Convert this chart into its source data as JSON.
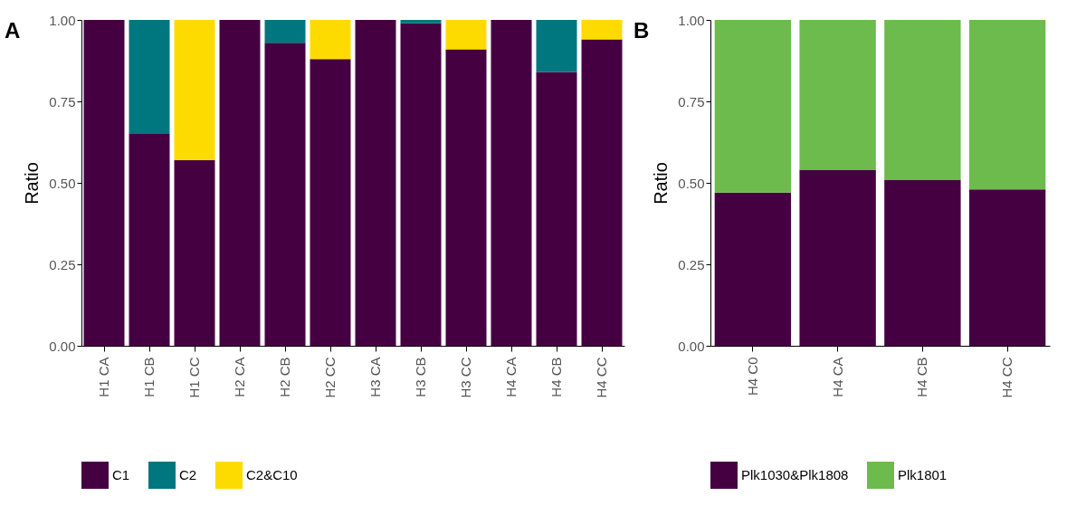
{
  "chart_data": [
    {
      "type": "bar",
      "stacked": true,
      "annotations": [
        "A"
      ],
      "ylabel": "Ratio",
      "categories": [
        "H1 CA",
        "H1 CB",
        "H1 CC",
        "H2 CA",
        "H2 CB",
        "H2 CC",
        "H3 CA",
        "H3 CB",
        "H3 CC",
        "H4 CA",
        "H4 CB",
        "H4 CC"
      ],
      "series": [
        {
          "name": "C1",
          "color": "#450042",
          "values": [
            1,
            0.65,
            0.57,
            1,
            0.93,
            0.88,
            1,
            0.99,
            0.91,
            1,
            0.84,
            0.94
          ]
        },
        {
          "name": "C2",
          "color": "#00767f",
          "values": [
            null,
            0.35,
            null,
            null,
            0.07,
            null,
            null,
            0.01,
            null,
            null,
            0.16,
            null
          ]
        },
        {
          "name": "C2&C10",
          "color": "#fedb00",
          "values": [
            null,
            null,
            0.43,
            null,
            null,
            0.12,
            null,
            null,
            0.09,
            null,
            null,
            0.06
          ]
        }
      ],
      "ylim": [
        0,
        1
      ],
      "yticks": [
        {
          "value": 0,
          "label": "0.00"
        },
        {
          "value": 0.25,
          "label": "0.25"
        },
        {
          "value": 0.5,
          "label": "0.50"
        },
        {
          "value": 0.75,
          "label": "0.75"
        },
        {
          "value": 1,
          "label": "1.00"
        }
      ],
      "legend": "bottom",
      "grid": false
    },
    {
      "type": "bar",
      "stacked": true,
      "annotations": [
        "B"
      ],
      "ylabel": "Ratio",
      "categories": [
        "H4 C0",
        "H4 CA",
        "H4 CB",
        "H4 CC"
      ],
      "series": [
        {
          "name": "Plk1030&Plk1808",
          "color": "#450042",
          "values": [
            0.47,
            0.54,
            0.51,
            0.48
          ]
        },
        {
          "name": "Plk1801",
          "color": "#6cbb4c",
          "values": [
            0.53,
            0.46,
            0.49,
            0.52
          ]
        }
      ],
      "ylim": [
        0,
        1
      ],
      "yticks": [
        {
          "value": 0,
          "label": "0.00"
        },
        {
          "value": 0.25,
          "label": "0.25"
        },
        {
          "value": 0.5,
          "label": "0.50"
        },
        {
          "value": 0.75,
          "label": "0.75"
        },
        {
          "value": 1,
          "label": "1.00"
        }
      ],
      "legend": "bottom",
      "grid": false
    }
  ]
}
